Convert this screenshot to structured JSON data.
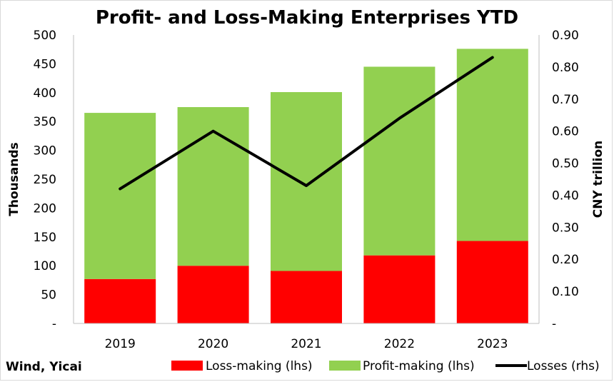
{
  "chart_data": {
    "type": "bar",
    "stacked": true,
    "title": "Profit- and Loss-Making Enterprises YTD",
    "categories": [
      "2019",
      "2020",
      "2021",
      "2022",
      "2023"
    ],
    "series": [
      {
        "name": "Loss-making (lhs)",
        "axis": "left",
        "kind": "bar",
        "color": "#ff0000",
        "values": [
          77,
          100,
          91,
          118,
          143
        ]
      },
      {
        "name": "Profit-making (lhs)",
        "axis": "left",
        "kind": "bar",
        "color": "#92d050",
        "values": [
          288,
          275,
          310,
          327,
          333
        ]
      },
      {
        "name": "Losses (rhs)",
        "axis": "right",
        "kind": "line",
        "color": "#000000",
        "values": [
          0.42,
          0.6,
          0.43,
          0.64,
          0.83
        ]
      }
    ],
    "ylabel": "Thousands",
    "y2label": "CNY trillion",
    "ylim": [
      0,
      500
    ],
    "y2lim": [
      0,
      0.9
    ],
    "yticks": [
      "-",
      "50",
      "100",
      "150",
      "200",
      "250",
      "300",
      "350",
      "400",
      "450",
      "500"
    ],
    "y2ticks": [
      "-",
      "0.10",
      "0.20",
      "0.30",
      "0.40",
      "0.50",
      "0.60",
      "0.70",
      "0.80",
      "0.90"
    ],
    "grid": false,
    "legend": "bottom",
    "source": "Wind, Yicai"
  }
}
